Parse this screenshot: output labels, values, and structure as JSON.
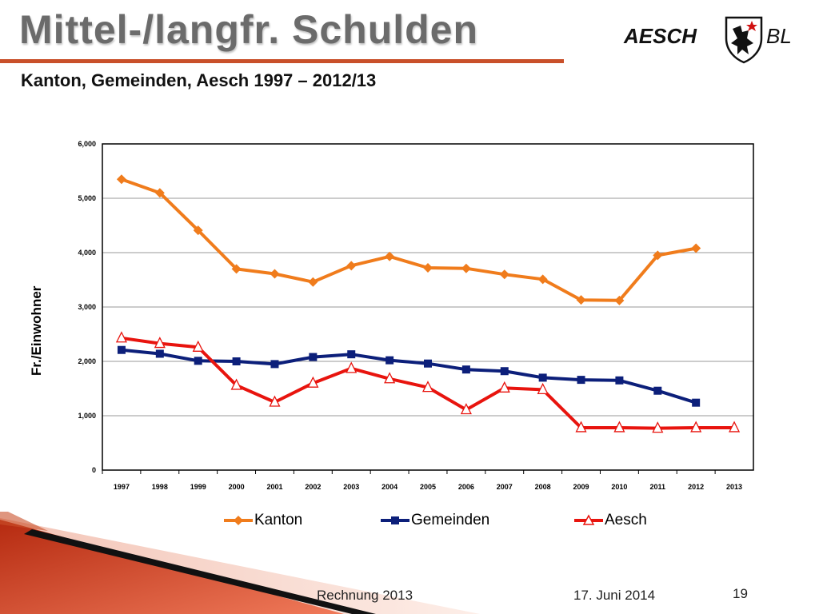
{
  "slide": {
    "title": "Mittel-/langfr. Schulden",
    "subtitle": "Kanton, Gemeinden, Aesch 1997 – 2012/13",
    "logo_text": "AESCH",
    "logo_region": "BL",
    "footer_left": "Rechnung 2013",
    "footer_date": "17. Juni 2014",
    "page_number": "19",
    "accent_color": "#c9502a"
  },
  "chart_data": {
    "type": "line",
    "x": [
      "1997",
      "1998",
      "1999",
      "2000",
      "2001",
      "2002",
      "2003",
      "2004",
      "2005",
      "2006",
      "2007",
      "2008",
      "2009",
      "2010",
      "2011",
      "2012",
      "2013"
    ],
    "ylabel": "Fr./Einwohner",
    "ylim": [
      0,
      6000
    ],
    "yticks": [
      "0",
      "1,000",
      "2,000",
      "3,000",
      "4,000",
      "5,000",
      "6,000"
    ],
    "grid": true,
    "legend_position": "bottom",
    "series": [
      {
        "name": "Kanton",
        "color": "#f07c1c",
        "marker": "diamond",
        "values": [
          5350,
          5100,
          4410,
          3700,
          3610,
          3460,
          3760,
          3930,
          3720,
          3710,
          3600,
          3510,
          3130,
          3120,
          3950,
          4080,
          null
        ]
      },
      {
        "name": "Gemeinden",
        "color": "#0c1f7a",
        "marker": "square",
        "values": [
          2210,
          2140,
          2010,
          2000,
          1950,
          2080,
          2130,
          2020,
          1960,
          1850,
          1820,
          1700,
          1660,
          1650,
          1460,
          1240,
          null
        ]
      },
      {
        "name": "Aesch",
        "color": "#e8140e",
        "marker": "triangle",
        "values": [
          2430,
          2330,
          2260,
          1560,
          1250,
          1600,
          1870,
          1680,
          1520,
          1110,
          1510,
          1480,
          780,
          780,
          770,
          780,
          780
        ]
      }
    ]
  }
}
